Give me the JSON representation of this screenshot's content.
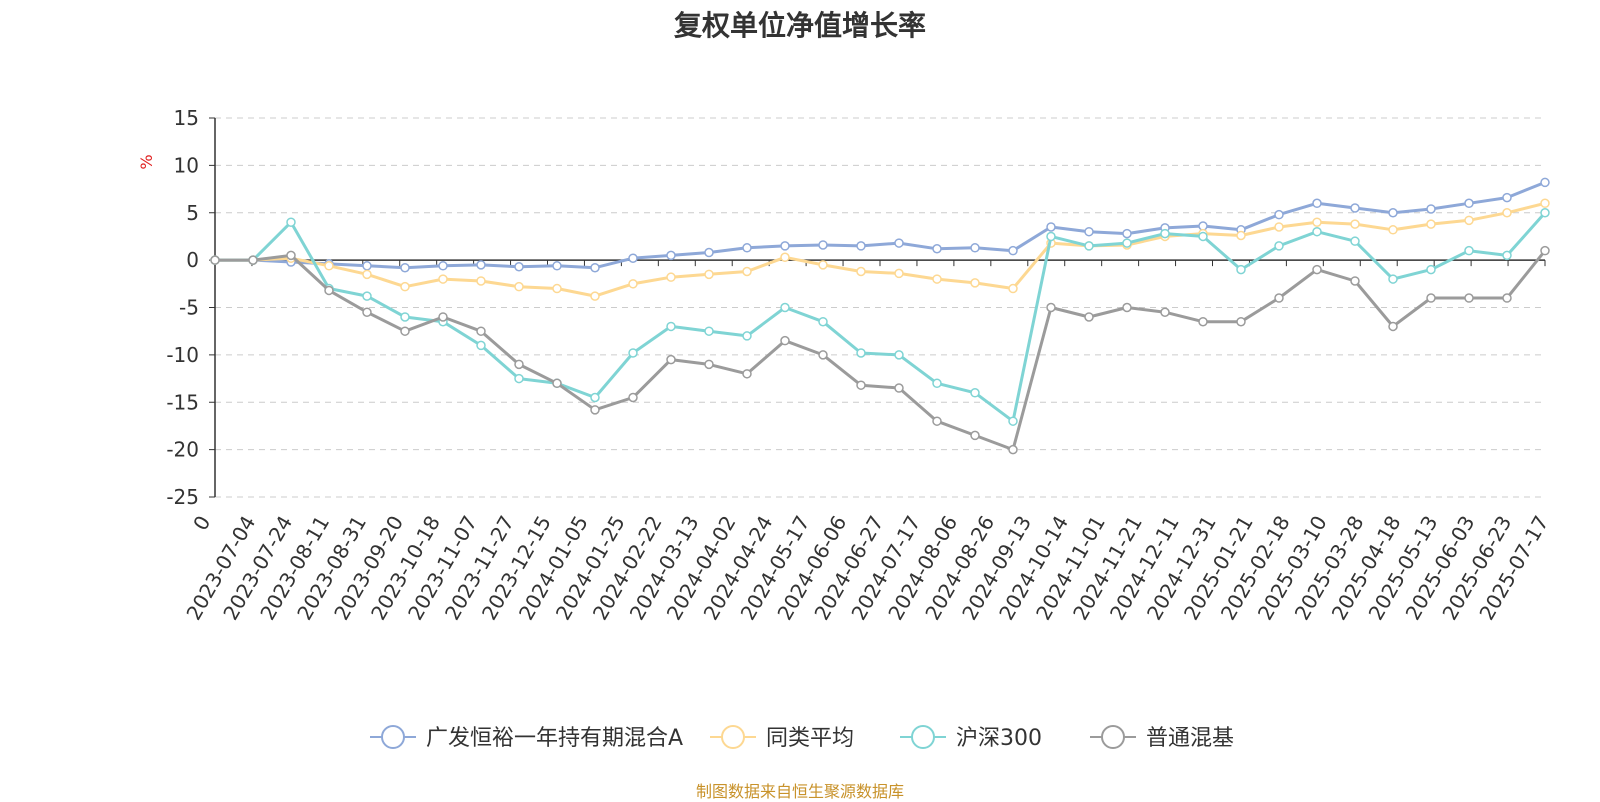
{
  "chart_data": {
    "type": "line",
    "title": "复权单位净值增长率",
    "ylabel": "%",
    "ylim": [
      -25,
      15
    ],
    "yticks": [
      -25,
      -20,
      -15,
      -10,
      -5,
      0,
      5,
      10,
      15
    ],
    "grid": true,
    "legend_position": "bottom",
    "x_first_label": "0",
    "x": [
      "2023-07-04",
      "2023-07-24",
      "2023-08-11",
      "2023-08-31",
      "2023-09-20",
      "2023-10-18",
      "2023-11-07",
      "2023-11-27",
      "2023-12-15",
      "2024-01-05",
      "2024-01-25",
      "2024-02-22",
      "2024-03-13",
      "2024-04-02",
      "2024-04-24",
      "2024-05-17",
      "2024-06-06",
      "2024-06-27",
      "2024-07-17",
      "2024-08-06",
      "2024-08-26",
      "2024-09-13",
      "2024-10-14",
      "2024-11-01",
      "2024-11-21",
      "2024-12-11",
      "2024-12-31",
      "2025-01-21",
      "2025-02-18",
      "2025-03-10",
      "2025-03-28",
      "2025-04-18",
      "2025-05-13",
      "2025-06-03",
      "2025-06-23",
      "2025-07-17"
    ],
    "series": [
      {
        "name": "广发恒裕一年持有期混合A",
        "color": "#8ea8d8",
        "values": [
          0.0,
          0.0,
          -0.2,
          -0.4,
          -0.6,
          -0.8,
          -0.6,
          -0.5,
          -0.7,
          -0.6,
          -0.8,
          0.2,
          0.5,
          0.8,
          1.3,
          1.5,
          1.6,
          1.5,
          1.8,
          1.2,
          1.3,
          1.0,
          3.5,
          3.0,
          2.8,
          3.4,
          3.6,
          3.2,
          4.8,
          6.0,
          5.5,
          5.0,
          5.4,
          6.0,
          6.6,
          8.2
        ]
      },
      {
        "name": "同类平均",
        "color": "#fdd892",
        "values": [
          0.0,
          0.0,
          0.2,
          -0.6,
          -1.5,
          -2.8,
          -2.0,
          -2.2,
          -2.8,
          -3.0,
          -3.8,
          -2.5,
          -1.8,
          -1.5,
          -1.2,
          0.3,
          -0.5,
          -1.2,
          -1.4,
          -2.0,
          -2.4,
          -3.0,
          1.8,
          1.5,
          1.6,
          2.5,
          2.8,
          2.6,
          3.5,
          4.0,
          3.8,
          3.2,
          3.8,
          4.2,
          5.0,
          6.0
        ]
      },
      {
        "name": "沪深300",
        "color": "#7fd4d4",
        "values": [
          0.0,
          0.0,
          4.0,
          -3.0,
          -3.8,
          -6.0,
          -6.5,
          -9.0,
          -12.5,
          -13.0,
          -14.5,
          -9.8,
          -7.0,
          -7.5,
          -8.0,
          -5.0,
          -6.5,
          -9.8,
          -10.0,
          -13.0,
          -14.0,
          -17.0,
          2.5,
          1.5,
          1.8,
          2.8,
          2.5,
          -1.0,
          1.5,
          3.0,
          2.0,
          -2.0,
          -1.0,
          1.0,
          0.5,
          5.0
        ]
      },
      {
        "name": "普通混基",
        "color": "#9b9b9b",
        "values": [
          0.0,
          0.0,
          0.5,
          -3.2,
          -5.5,
          -7.5,
          -6.0,
          -7.5,
          -11.0,
          -13.0,
          -15.8,
          -14.5,
          -10.5,
          -11.0,
          -12.0,
          -8.5,
          -10.0,
          -13.2,
          -13.5,
          -17.0,
          -18.5,
          -20.0,
          -5.0,
          -6.0,
          -5.0,
          -5.5,
          -6.5,
          -6.5,
          -4.0,
          -1.0,
          -2.2,
          -7.0,
          -4.0,
          -4.0,
          -4.0,
          1.0
        ]
      }
    ]
  },
  "source": "制图数据来自恒生聚源数据库"
}
